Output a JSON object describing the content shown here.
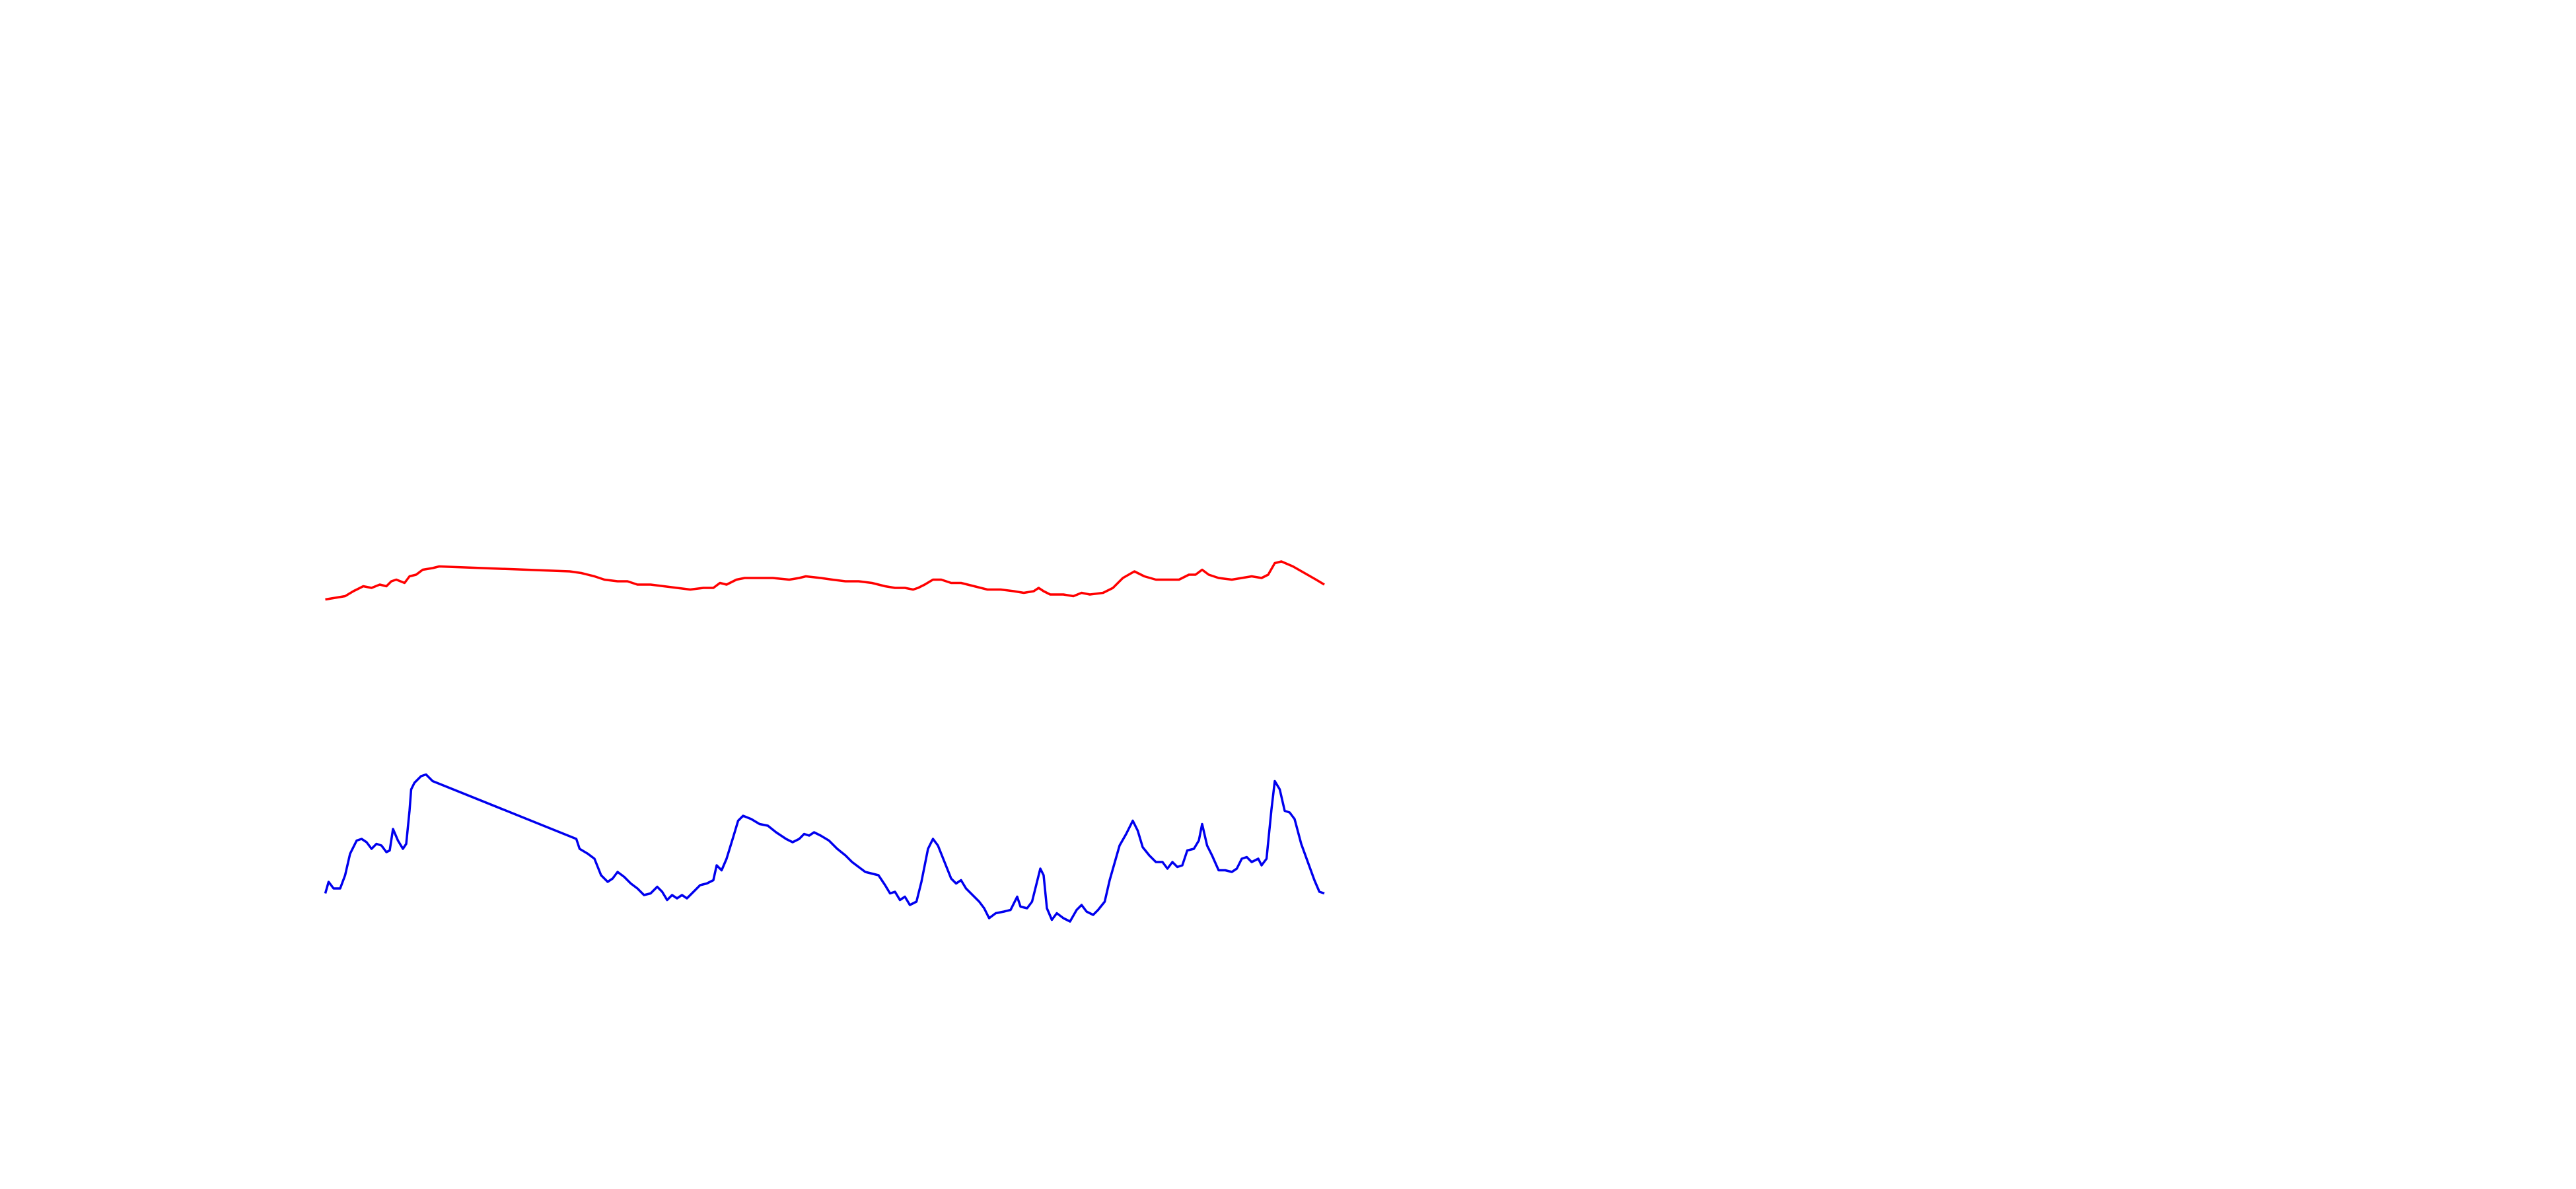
{
  "chart_data": {
    "type": "line",
    "xlim": [
      0,
      605
    ],
    "ylim": [
      0,
      720
    ],
    "series": [
      {
        "color": "#ff0000",
        "x": [
          0,
          6,
          12,
          17,
          23,
          28,
          33,
          37,
          40,
          43,
          48,
          51,
          55,
          59,
          65,
          69,
          148,
          155,
          163,
          169,
          177,
          183,
          189,
          197,
          205,
          213,
          221,
          229,
          235,
          239,
          243,
          249,
          254,
          259,
          271,
          281,
          287,
          291,
          300,
          307,
          315,
          323,
          331,
          339,
          345,
          351,
          356,
          359,
          363,
          368,
          373,
          379,
          385,
          393,
          401,
          409,
          417,
          423,
          429,
          432,
          435,
          439,
          447,
          453,
          458,
          463,
          471,
          477,
          483,
          490,
          496,
          503,
          511,
          517,
          523,
          527,
          531,
          535,
          541,
          549,
          555,
          561,
          567,
          571,
          575,
          579,
          586,
          593,
          600,
          605
        ],
        "values": [
          357,
          358,
          359,
          362,
          365,
          364,
          366,
          365,
          368,
          369,
          367,
          371,
          372,
          375,
          376,
          377,
          374,
          373,
          371,
          369,
          368,
          368,
          366,
          366,
          365,
          364,
          363,
          364,
          364,
          367,
          366,
          369,
          370,
          370,
          370,
          369,
          370,
          371,
          370,
          369,
          368,
          368,
          367,
          365,
          364,
          364,
          363,
          364,
          366,
          369,
          369,
          367,
          367,
          365,
          363,
          363,
          362,
          361,
          362,
          364,
          362,
          360,
          360,
          359,
          361,
          360,
          361,
          364,
          370,
          374,
          371,
          369,
          369,
          369,
          372,
          372,
          375,
          372,
          370,
          369,
          370,
          371,
          370,
          372,
          379,
          380,
          377,
          373,
          369,
          366
        ]
      },
      {
        "color": "#0000ee",
        "x": [
          0,
          2,
          5,
          9,
          12,
          15,
          19,
          22,
          25,
          28,
          31,
          34,
          37,
          39,
          41,
          44,
          47,
          49,
          51,
          52,
          54,
          58,
          61,
          65,
          152,
          154,
          159,
          163,
          167,
          171,
          174,
          177,
          181,
          185,
          189,
          193,
          197,
          201,
          204,
          207,
          210,
          213,
          216,
          219,
          223,
          227,
          231,
          235,
          237,
          240,
          243,
          247,
          250,
          253,
          258,
          263,
          268,
          273,
          279,
          283,
          287,
          290,
          293,
          296,
          300,
          305,
          310,
          315,
          319,
          323,
          327,
          331,
          335,
          339,
          342,
          345,
          348,
          351,
          354,
          358,
          361,
          365,
          368,
          371,
          375,
          379,
          382,
          385,
          388,
          392,
          396,
          399,
          402,
          406,
          411,
          415,
          419,
          421,
          425,
          428,
          431,
          433,
          435,
          437,
          440,
          443,
          447,
          451,
          455,
          458,
          461,
          465,
          468,
          472,
          475,
          479,
          481,
          485,
          489,
          492,
          495,
          499,
          503,
          507,
          510,
          513,
          516,
          519,
          522,
          526,
          529,
          531,
          534,
          537,
          541,
          545,
          549,
          552,
          555,
          558,
          561,
          565,
          567,
          570,
          573,
          575,
          578,
          581,
          584,
          587,
          591,
          595,
          599,
          602,
          605
        ],
        "values": [
          179,
          186,
          182,
          182,
          190,
          203,
          211,
          212,
          210,
          206,
          209,
          208,
          204,
          205,
          218,
          211,
          206,
          209,
          229,
          242,
          246,
          250,
          251,
          247,
          212,
          206,
          203,
          200,
          190,
          186,
          188,
          192,
          189,
          185,
          182,
          178,
          179,
          183,
          180,
          175,
          178,
          176,
          178,
          176,
          180,
          184,
          185,
          187,
          196,
          193,
          200,
          213,
          223,
          226,
          224,
          221,
          220,
          216,
          212,
          210,
          212,
          215,
          214,
          216,
          214,
          211,
          206,
          202,
          198,
          195,
          192,
          191,
          190,
          184,
          179,
          180,
          175,
          177,
          172,
          174,
          186,
          206,
          212,
          208,
          198,
          188,
          185,
          187,
          182,
          178,
          174,
          170,
          164,
          167,
          168,
          169,
          177,
          171,
          170,
          174,
          186,
          194,
          190,
          170,
          163,
          167,
          164,
          162,
          169,
          172,
          168,
          166,
          169,
          174,
          187,
          201,
          208,
          215,
          223,
          217,
          207,
          202,
          198,
          198,
          194,
          198,
          195,
          196,
          205,
          206,
          211,
          221,
          208,
          202,
          193,
          193,
          192,
          194,
          200,
          201,
          198,
          200,
          196,
          200,
          230,
          247,
          242,
          229,
          228,
          224,
          209,
          198,
          187,
          180,
          179
        ]
      }
    ]
  }
}
